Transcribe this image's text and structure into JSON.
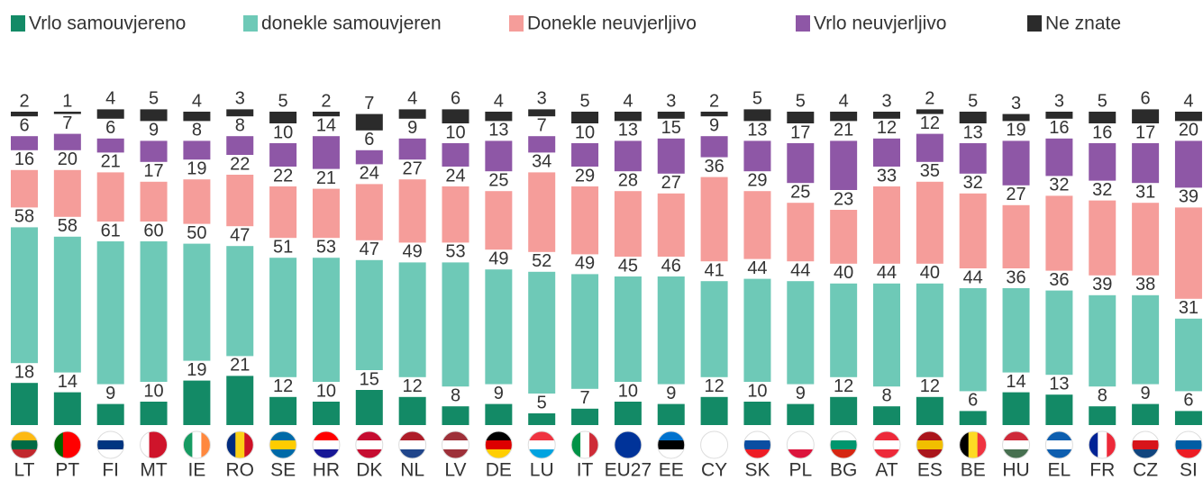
{
  "chart_data": {
    "type": "stacked_bar",
    "categories": [
      "LT",
      "PT",
      "FI",
      "MT",
      "IE",
      "RO",
      "SE",
      "HR",
      "DK",
      "NL",
      "LV",
      "DE",
      "LU",
      "IT",
      "EU27",
      "EE",
      "CY",
      "SK",
      "PL",
      "BG",
      "AT",
      "ES",
      "BE",
      "HU",
      "EL",
      "FR",
      "CZ",
      "SI"
    ],
    "series": [
      {
        "name": "Vrlo samouvjereno",
        "color": "#138a66",
        "values": [
          18,
          14,
          9,
          10,
          19,
          21,
          12,
          10,
          15,
          12,
          8,
          9,
          5,
          7,
          10,
          9,
          12,
          10,
          9,
          12,
          8,
          12,
          6,
          14,
          13,
          8,
          9,
          6
        ]
      },
      {
        "name": "donekle samouvjeren",
        "color": "#6ec9b7",
        "values": [
          58,
          58,
          61,
          60,
          50,
          47,
          51,
          53,
          47,
          49,
          53,
          49,
          52,
          49,
          45,
          46,
          41,
          44,
          44,
          40,
          44,
          40,
          44,
          36,
          36,
          39,
          38,
          31
        ]
      },
      {
        "name": "Donekle neuvjerljivo",
        "color": "#f59d9a",
        "values": [
          16,
          20,
          21,
          17,
          19,
          22,
          22,
          21,
          24,
          27,
          24,
          25,
          34,
          29,
          28,
          27,
          36,
          29,
          25,
          23,
          33,
          35,
          32,
          27,
          32,
          32,
          31,
          39
        ]
      },
      {
        "name": "Vrlo neuvjerljivo",
        "color": "#8e57a6",
        "values": [
          6,
          7,
          6,
          9,
          8,
          8,
          10,
          14,
          6,
          9,
          10,
          13,
          7,
          10,
          13,
          15,
          9,
          13,
          17,
          21,
          12,
          12,
          13,
          19,
          16,
          16,
          17,
          20
        ]
      },
      {
        "name": "Ne znate",
        "color": "#2b2b2b",
        "values": [
          2,
          1,
          4,
          5,
          4,
          3,
          5,
          2,
          7,
          4,
          6,
          4,
          3,
          5,
          4,
          3,
          2,
          5,
          5,
          4,
          3,
          2,
          5,
          3,
          3,
          5,
          6,
          4
        ]
      }
    ]
  }
}
